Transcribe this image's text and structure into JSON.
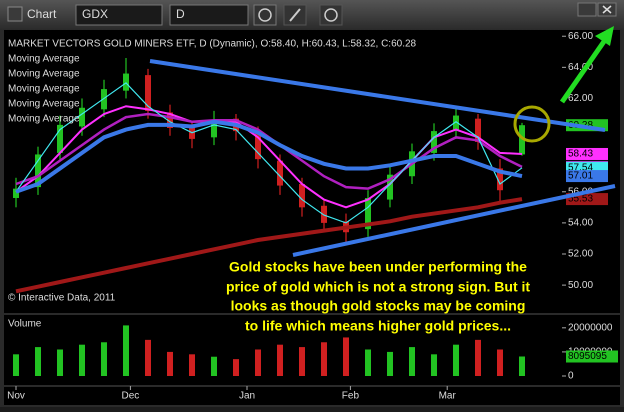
{
  "toolbar": {
    "title": "Chart",
    "symbol": "GDX",
    "period": "D"
  },
  "chart_data": {
    "type": "candlestick",
    "title": "MARKET VECTORS GOLD MINERS ETF, D (Dynamic), O:58.40, H:60.43, L:58.32, C:60.28",
    "copyright": "© Interactive Data, 2011",
    "annotation": [
      "Gold stocks have been under performing the",
      "price of gold which is not a strong sign. But it",
      "looks as though gold stocks may be coming",
      "to life which means higher gold prices..."
    ],
    "x": [
      0,
      1,
      2,
      3,
      4,
      5,
      6,
      7,
      8,
      9,
      10,
      11,
      12,
      13,
      14,
      15,
      16,
      17,
      18,
      19,
      20,
      21,
      22,
      23
    ],
    "xlim": [
      -0.5,
      24.5
    ],
    "xticks": [
      {
        "value": 0,
        "label": "Nov"
      },
      {
        "value": 5.2,
        "label": "Dec"
      },
      {
        "value": 10.5,
        "label": "Jan"
      },
      {
        "value": 15.2,
        "label": "Feb"
      },
      {
        "value": 19.6,
        "label": "Mar"
      }
    ],
    "open": [
      55.6,
      56.3,
      58.5,
      60.2,
      61.3,
      62.5,
      63.5,
      61.1,
      60.2,
      59.5,
      60.7,
      59.8,
      58.0,
      56.5,
      55.1,
      54.1,
      53.6,
      55.5,
      57.0,
      58.5,
      60.0,
      60.7,
      57.5,
      58.4
    ],
    "high": [
      56.9,
      58.9,
      60.9,
      62.0,
      63.2,
      64.6,
      63.9,
      61.6,
      60.5,
      61.2,
      61.0,
      60.2,
      58.4,
      56.9,
      55.5,
      54.6,
      56.1,
      57.6,
      59.1,
      60.4,
      61.5,
      61.0,
      58.1,
      60.43
    ],
    "low": [
      55.0,
      55.8,
      58.0,
      59.6,
      60.8,
      62.0,
      60.7,
      59.6,
      58.8,
      59.0,
      59.3,
      57.5,
      55.8,
      54.4,
      53.4,
      52.7,
      53.1,
      55.0,
      56.5,
      58.0,
      59.4,
      58.7,
      55.4,
      58.32
    ],
    "close": [
      56.2,
      58.4,
      60.3,
      61.4,
      62.6,
      63.6,
      61.2,
      60.1,
      59.4,
      60.6,
      59.9,
      58.1,
      56.4,
      55.0,
      54.0,
      53.4,
      55.6,
      57.1,
      58.6,
      59.9,
      60.9,
      59.2,
      56.1,
      60.28
    ],
    "up_color": "#22c322",
    "down_color": "#d02020",
    "ylim": [
      49.3,
      66.4
    ],
    "yticks": [
      {
        "value": 66,
        "label": "66.00"
      },
      {
        "value": 64,
        "label": "64.00"
      },
      {
        "value": 62,
        "label": "62.00"
      },
      {
        "value": 56,
        "label": "56.00"
      },
      {
        "value": 54,
        "label": "54.00"
      },
      {
        "value": 52,
        "label": "52.00"
      },
      {
        "value": 50,
        "label": "50.00"
      }
    ],
    "series": [
      {
        "name": "Moving Average",
        "color": "#ff30ff",
        "width": 2,
        "values": [
          56,
          57,
          58.5,
          60,
          61,
          61.5,
          61.3,
          61,
          60.5,
          60.5,
          60.5,
          59.5,
          58,
          56.5,
          55.5,
          55,
          55.5,
          56.5,
          58,
          59.5,
          60,
          59.5,
          58.5,
          58.43
        ]
      },
      {
        "name": "Moving Average",
        "color": "#b020c0",
        "width": 2.5,
        "values": [
          56.5,
          57,
          58,
          59,
          60,
          60.8,
          61,
          60.8,
          60.5,
          60.6,
          60.6,
          60,
          59,
          58,
          57,
          56.3,
          56.2,
          56.8,
          57.8,
          58.8,
          59.5,
          59.3,
          58.3,
          57.6
        ]
      },
      {
        "name": "Moving Average",
        "color": "#40e8f0",
        "width": 1.2,
        "values": [
          56,
          58,
          60,
          61,
          62,
          63,
          61.5,
          60.5,
          59.8,
          60.3,
          60,
          58.5,
          57,
          55.5,
          54.5,
          54,
          55,
          56.5,
          58,
          59.5,
          60.5,
          59.5,
          56.5,
          57.54
        ]
      },
      {
        "name": "Moving Average",
        "color": "#3a78e8",
        "width": 4,
        "values": [
          56,
          56.5,
          57.5,
          58.5,
          59.5,
          60,
          60.3,
          60.3,
          60.2,
          60.5,
          60.3,
          59.8,
          59,
          58.3,
          57.8,
          57.5,
          57.5,
          57.7,
          58,
          58.3,
          58.3,
          57.8,
          57.3,
          57.01
        ]
      },
      {
        "name": "Moving Average",
        "color": "#a01818",
        "width": 4,
        "values": [
          49.6,
          49.9,
          50.2,
          50.5,
          50.8,
          51.1,
          51.4,
          51.7,
          52.0,
          52.3,
          52.6,
          52.9,
          53.1,
          53.3,
          53.5,
          53.7,
          53.9,
          54.1,
          54.4,
          54.6,
          54.8,
          55.0,
          55.3,
          55.53
        ]
      }
    ],
    "volume": {
      "title": "Volume",
      "values": [
        9000000,
        12000000,
        11000000,
        13000000,
        14000000,
        21000000,
        15000000,
        10000000,
        9000000,
        8000000,
        7000000,
        11000000,
        13000000,
        12000000,
        14000000,
        16000000,
        11000000,
        10000000,
        12000000,
        9000000,
        13000000,
        15000000,
        11000000,
        8095095
      ],
      "ylim": [
        0,
        22000000
      ],
      "yticks": [
        20000000,
        10000000,
        0
      ]
    }
  }
}
